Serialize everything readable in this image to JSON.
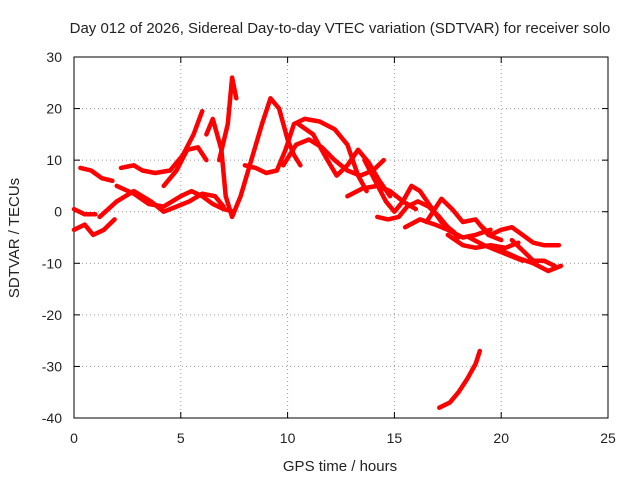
{
  "chart_data": {
    "type": "line",
    "title": "Day 012 of 2026, Sidereal Day-to-day VTEC variation (SDTVAR) for receiver solo",
    "xlabel": "GPS time / hours",
    "ylabel": "SDTVAR / TECUs",
    "xlim": [
      0,
      25
    ],
    "ylim": [
      -40,
      30
    ],
    "xticks": [
      0,
      5,
      10,
      15,
      20,
      25
    ],
    "yticks": [
      -40,
      -30,
      -20,
      -10,
      0,
      10,
      20,
      30
    ],
    "grid": true,
    "legend": "none",
    "color": "#ff0000",
    "series": [
      {
        "name": "track-1",
        "x": [
          0.3,
          0.8,
          1.3,
          1.8
        ],
        "y": [
          8.5,
          8.0,
          6.5,
          6.0
        ]
      },
      {
        "name": "track-2",
        "x": [
          2.2,
          2.8,
          3.2,
          3.8,
          4.5,
          5.1,
          5.6,
          6.0
        ],
        "y": [
          8.5,
          9.0,
          8.0,
          7.5,
          8.0,
          11.0,
          15.0,
          19.5
        ]
      },
      {
        "name": "track-3",
        "x": [
          6.8,
          7.2,
          7.4,
          7.6
        ],
        "y": [
          10.0,
          17.0,
          26.0,
          22.0
        ]
      },
      {
        "name": "track-4",
        "x": [
          6.2,
          6.5,
          6.9,
          7.1,
          7.4,
          7.8,
          8.3,
          8.8,
          9.2,
          9.6,
          10.0,
          10.3,
          10.6
        ],
        "y": [
          15.0,
          18.0,
          12.0,
          3.0,
          -1.0,
          3.0,
          10.0,
          17.0,
          22.0,
          20.0,
          14.0,
          11.0,
          9.0
        ]
      },
      {
        "name": "track-5",
        "x": [
          4.2,
          4.8,
          5.3,
          5.8,
          6.2
        ],
        "y": [
          5.0,
          8.0,
          12.0,
          12.5,
          10.0
        ]
      },
      {
        "name": "track-6",
        "x": [
          2.0,
          2.8,
          3.5,
          4.2,
          5.0,
          5.5,
          6.0,
          6.5,
          7.0,
          7.5
        ],
        "y": [
          5.0,
          3.5,
          1.5,
          1.0,
          3.0,
          4.0,
          3.0,
          1.5,
          0.5,
          0.0
        ]
      },
      {
        "name": "track-7",
        "x": [
          1.2,
          2.0,
          2.8,
          3.6,
          4.2,
          4.8,
          5.4,
          6.0,
          6.6,
          7.0
        ],
        "y": [
          -1.0,
          2.0,
          4.0,
          2.0,
          0.0,
          1.0,
          2.0,
          3.5,
          3.0,
          1.0
        ]
      },
      {
        "name": "track-8",
        "x": [
          0.0,
          0.5,
          1.0
        ],
        "y": [
          0.5,
          -0.5,
          -0.5
        ]
      },
      {
        "name": "track-9",
        "x": [
          0.0,
          0.5,
          0.9,
          1.4,
          1.9
        ],
        "y": [
          -3.5,
          -2.5,
          -4.5,
          -3.5,
          -1.5
        ]
      },
      {
        "name": "track-10",
        "x": [
          8.0,
          8.5,
          9.0,
          9.5,
          9.9,
          10.3,
          10.8,
          11.5,
          12.2,
          12.8,
          13.3,
          13.7
        ],
        "y": [
          9.0,
          8.5,
          7.5,
          8.0,
          12.0,
          17.0,
          18.0,
          17.5,
          16.0,
          13.0,
          7.0,
          4.0
        ]
      },
      {
        "name": "track-11",
        "x": [
          9.8,
          10.4,
          11.0,
          11.6,
          12.2,
          12.8,
          13.4,
          14.0,
          14.5
        ],
        "y": [
          9.0,
          13.0,
          14.0,
          12.5,
          10.0,
          8.0,
          7.0,
          8.0,
          10.0
        ]
      },
      {
        "name": "track-12",
        "x": [
          10.5,
          11.2,
          11.8,
          12.3,
          12.8,
          13.3,
          13.8,
          14.3,
          14.8
        ],
        "y": [
          17.0,
          15.0,
          10.5,
          7.0,
          9.0,
          12.0,
          9.5,
          6.0,
          3.0
        ]
      },
      {
        "name": "track-13",
        "x": [
          12.8,
          13.5,
          14.2,
          14.8,
          15.4,
          16.0
        ],
        "y": [
          3.0,
          4.5,
          5.0,
          4.0,
          2.0,
          0.5
        ]
      },
      {
        "name": "track-14",
        "x": [
          13.6,
          14.1,
          14.6,
          15.0,
          15.4,
          15.8,
          16.2,
          16.7,
          17.2,
          17.8
        ],
        "y": [
          10.0,
          6.0,
          2.0,
          0.0,
          2.0,
          5.0,
          4.0,
          1.0,
          -2.0,
          -4.0
        ]
      },
      {
        "name": "track-15",
        "x": [
          14.2,
          14.7,
          15.2,
          15.6,
          16.1,
          16.6,
          17.1,
          17.5,
          18.0
        ],
        "y": [
          -1.0,
          -1.5,
          -1.0,
          1.0,
          2.0,
          1.0,
          -1.0,
          -3.0,
          -5.0
        ]
      },
      {
        "name": "track-16",
        "x": [
          15.5,
          16.2,
          16.9,
          17.5,
          18.2,
          18.8,
          19.5
        ],
        "y": [
          -3.0,
          -1.5,
          -2.5,
          -3.5,
          -5.0,
          -4.5,
          -3.5
        ]
      },
      {
        "name": "track-17",
        "x": [
          16.5,
          17.2,
          17.7,
          18.2,
          18.8,
          19.4,
          20.0
        ],
        "y": [
          -2.0,
          2.5,
          0.5,
          -2.0,
          -1.5,
          -4.5,
          -5.5
        ]
      },
      {
        "name": "track-18",
        "x": [
          17.5,
          18.2,
          18.8,
          19.5,
          20.2,
          20.8
        ],
        "y": [
          -4.5,
          -6.5,
          -7.0,
          -6.5,
          -7.0,
          -6.0
        ]
      },
      {
        "name": "track-19",
        "x": [
          18.5,
          19.2,
          19.8,
          20.4,
          21.0
        ],
        "y": [
          -5.0,
          -6.5,
          -7.5,
          -8.5,
          -9.5
        ]
      },
      {
        "name": "track-20",
        "x": [
          19.0,
          19.5,
          20.0,
          20.5,
          21.0,
          21.5,
          22.0,
          22.7
        ],
        "y": [
          -2.5,
          -4.5,
          -3.5,
          -3.0,
          -4.5,
          -6.0,
          -6.5,
          -6.5
        ]
      },
      {
        "name": "track-21",
        "x": [
          20.0,
          20.8,
          21.5,
          22.2,
          22.8
        ],
        "y": [
          -7.5,
          -9.0,
          -10.0,
          -11.5,
          -10.5
        ]
      },
      {
        "name": "track-22",
        "x": [
          20.5,
          21.0,
          21.5,
          22.0,
          22.5
        ],
        "y": [
          -5.5,
          -7.5,
          -9.5,
          -9.5,
          -10.5
        ]
      },
      {
        "name": "track-23",
        "x": [
          17.1,
          17.6,
          18.0,
          18.4,
          18.8,
          19.0
        ],
        "y": [
          -38.0,
          -37.0,
          -35.0,
          -32.5,
          -29.5,
          -27.0
        ]
      }
    ]
  }
}
